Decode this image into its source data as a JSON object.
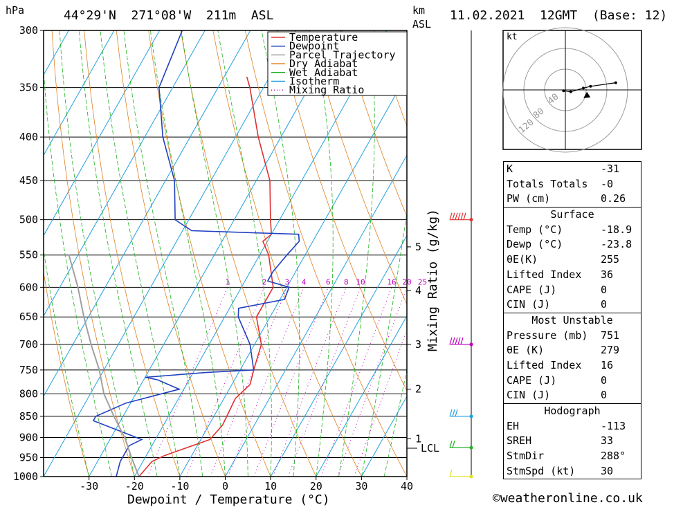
{
  "header": {
    "pressure_unit": "hPa",
    "location": "44°29'N  271°08'W  211m  ASL",
    "height_unit_1": "km",
    "height_unit_2": "ASL",
    "datetime": "11.02.2021  12GMT  (Base: 12)"
  },
  "footer": {
    "xlabel": "Dewpoint / Temperature (°C)",
    "mixing_axis_label": "Mixing Ratio (g/kg)",
    "lcl_label": "LCL",
    "credit": "©weatheronline.co.uk"
  },
  "chart_data": [
    {
      "type": "line",
      "subtype": "skew-t",
      "pressure_ticks": [
        300,
        350,
        400,
        450,
        500,
        550,
        600,
        650,
        700,
        750,
        800,
        850,
        900,
        950,
        1000
      ],
      "temperature_ticks": [
        -30,
        -20,
        -10,
        0,
        10,
        20,
        30,
        40
      ],
      "xlim": [
        -40,
        40
      ],
      "ylim": [
        1000,
        300
      ],
      "km_ticks": [
        {
          "label": "1",
          "p": 903
        },
        {
          "label": "2",
          "p": 790
        },
        {
          "label": "3",
          "p": 700
        },
        {
          "label": "4",
          "p": 605
        },
        {
          "label": "5",
          "p": 538
        }
      ],
      "mixing_ratio_labels": [
        "1",
        "2",
        "3",
        "4",
        "6",
        "8",
        "10",
        "16",
        "20",
        "25"
      ],
      "mixing_ratio_values": [
        1,
        2,
        3,
        4,
        6,
        8,
        10,
        16,
        20,
        25
      ],
      "legend": {
        "placement": "top-right",
        "entries": [
          {
            "name": "Temperature",
            "color": "#e03030",
            "style": "solid"
          },
          {
            "name": "Dewpoint",
            "color": "#2040c0",
            "style": "solid"
          },
          {
            "name": "Parcel Trajectory",
            "color": "#a0a0a0",
            "style": "solid"
          },
          {
            "name": "Dry Adiabat",
            "color": "#e08020",
            "style": "solid"
          },
          {
            "name": "Wet Adiabat",
            "color": "#20b020",
            "style": "solid"
          },
          {
            "name": "Isotherm",
            "color": "#20a0e0",
            "style": "solid"
          },
          {
            "name": "Mixing Ratio",
            "color": "#c000c0",
            "style": "dotted"
          }
        ]
      },
      "series": [
        {
          "name": "Temperature",
          "points": [
            [
              1000,
              -19
            ],
            [
              960,
              -18
            ],
            [
              945,
              -16
            ],
            [
              905,
              -8
            ],
            [
              870,
              -7
            ],
            [
              810,
              -7.5
            ],
            [
              780,
              -6
            ],
            [
              750,
              -7
            ],
            [
              700,
              -8.5
            ],
            [
              650,
              -13
            ],
            [
              630,
              -13
            ],
            [
              600,
              -13
            ],
            [
              550,
              -18
            ],
            [
              530,
              -21
            ],
            [
              520,
              -20
            ],
            [
              500,
              -22
            ],
            [
              450,
              -27
            ],
            [
              400,
              -35
            ],
            [
              350,
              -43
            ],
            [
              340,
              -45
            ]
          ]
        },
        {
          "name": "Dewpoint",
          "points": [
            [
              1000,
              -24
            ],
            [
              960,
              -25
            ],
            [
              920,
              -25
            ],
            [
              905,
              -23
            ],
            [
              860,
              -36
            ],
            [
              850,
              -36
            ],
            [
              820,
              -31
            ],
            [
              790,
              -21
            ],
            [
              780,
              -24
            ],
            [
              770,
              -27
            ],
            [
              765,
              -30
            ],
            [
              755,
              -17
            ],
            [
              750,
              -7
            ],
            [
              700,
              -11
            ],
            [
              650,
              -17
            ],
            [
              635,
              -18
            ],
            [
              620,
              -9
            ],
            [
              600,
              -9.5
            ],
            [
              590,
              -15
            ],
            [
              575,
              -15
            ],
            [
              550,
              -14
            ],
            [
              530,
              -13
            ],
            [
              520,
              -14
            ],
            [
              515,
              -38
            ],
            [
              500,
              -43
            ],
            [
              450,
              -48
            ],
            [
              400,
              -56
            ],
            [
              350,
              -63
            ],
            [
              300,
              -65
            ]
          ]
        },
        {
          "name": "Parcel Trajectory",
          "points": [
            [
              1000,
              -19
            ],
            [
              950,
              -23
            ],
            [
              900,
              -27
            ],
            [
              850,
              -32
            ],
            [
              800,
              -37
            ],
            [
              750,
              -41
            ],
            [
              700,
              -46
            ],
            [
              650,
              -51
            ],
            [
              600,
              -56
            ],
            [
              550,
              -62
            ]
          ]
        }
      ]
    },
    {
      "type": "scatter",
      "subtype": "hodograph",
      "unit_label": "kt",
      "ring_labels": [
        "40",
        "80",
        "120"
      ],
      "points": [
        [
          -1,
          -0.5
        ],
        [
          3,
          -1
        ],
        [
          10,
          1
        ],
        [
          14,
          2
        ],
        [
          28,
          4
        ]
      ],
      "storm_motion_point": [
        4,
        -1
      ]
    },
    {
      "type": "table",
      "sections": [
        {
          "title": "",
          "rows": [
            {
              "label": "K",
              "value": "-31"
            },
            {
              "label": "Totals Totals",
              "value": "-0"
            },
            {
              "label": "PW (cm)",
              "value": "0.26"
            }
          ]
        },
        {
          "title": "Surface",
          "rows": [
            {
              "label": "Temp (°C)",
              "value": "-18.9"
            },
            {
              "label": "Dewp (°C)",
              "value": "-23.8"
            },
            {
              "label": "θE(K)",
              "value": "255"
            },
            {
              "label": "Lifted Index",
              "value": "36"
            },
            {
              "label": "CAPE (J)",
              "value": "0"
            },
            {
              "label": "CIN (J)",
              "value": "0"
            }
          ]
        },
        {
          "title": "Most Unstable",
          "rows": [
            {
              "label": "Pressure (mb)",
              "value": "751"
            },
            {
              "label": "θE (K)",
              "value": "279"
            },
            {
              "label": "Lifted Index",
              "value": "16"
            },
            {
              "label": "CAPE (J)",
              "value": "0"
            },
            {
              "label": "CIN (J)",
              "value": "0"
            }
          ]
        },
        {
          "title": "Hodograph",
          "rows": [
            {
              "label": "EH",
              "value": "-113"
            },
            {
              "label": "SREH",
              "value": "33"
            },
            {
              "label": "StmDir",
              "value": "288°"
            },
            {
              "label": "StmSpd (kt)",
              "value": "30"
            }
          ]
        }
      ]
    },
    {
      "type": "scatter",
      "subtype": "wind-barbs",
      "barbs": [
        {
          "p": 500,
          "color": "#e03030",
          "speed_kt": 55
        },
        {
          "p": 700,
          "color": "#c000c0",
          "speed_kt": 50
        },
        {
          "p": 850,
          "color": "#20a0e0",
          "speed_kt": 30
        },
        {
          "p": 925,
          "color": "#20b020",
          "speed_kt": 15
        },
        {
          "p": 1000,
          "color": "#e0e020",
          "speed_kt": 10
        }
      ]
    }
  ]
}
